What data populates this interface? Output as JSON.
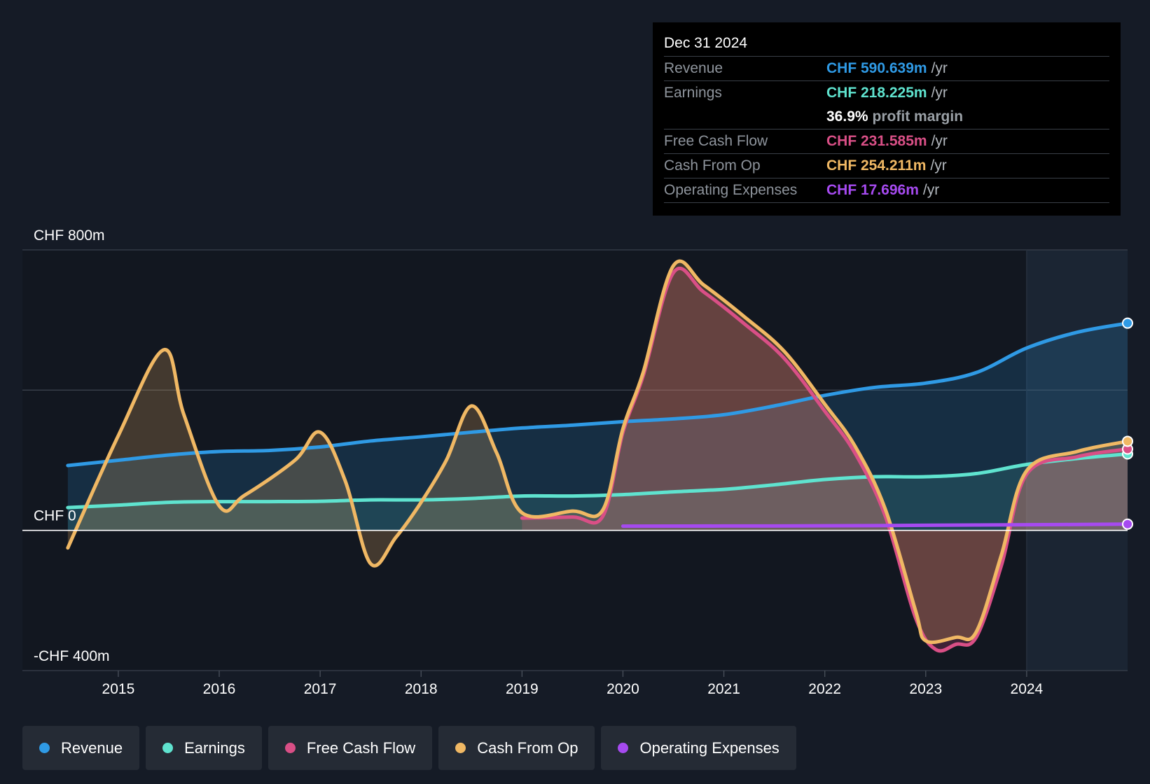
{
  "tooltip": {
    "date": "Dec 31 2024",
    "rows": [
      {
        "label": "Revenue",
        "value": "CHF 590.639m",
        "unit": "/yr",
        "color": "#2f9ae5"
      },
      {
        "label": "Earnings",
        "value": "CHF 218.225m",
        "unit": "/yr",
        "color": "#5fe3cf"
      },
      {
        "label": "",
        "value": "36.9%",
        "unit": "profit margin",
        "color": "#ffffff"
      },
      {
        "label": "Free Cash Flow",
        "value": "CHF 231.585m",
        "unit": "/yr",
        "color": "#d94f86"
      },
      {
        "label": "Cash From Op",
        "value": "CHF 254.211m",
        "unit": "/yr",
        "color": "#f0b864"
      },
      {
        "label": "Operating Expenses",
        "value": "CHF 17.696m",
        "unit": "/yr",
        "color": "#a64af0"
      }
    ]
  },
  "legend": [
    {
      "label": "Revenue",
      "color": "#2f9ae5"
    },
    {
      "label": "Earnings",
      "color": "#5fe3cf"
    },
    {
      "label": "Free Cash Flow",
      "color": "#d94f86"
    },
    {
      "label": "Cash From Op",
      "color": "#f0b864"
    },
    {
      "label": "Operating Expenses",
      "color": "#a64af0"
    }
  ],
  "chart_data": {
    "type": "area",
    "title": "",
    "xlabel": "",
    "ylabel": "",
    "ylim": [
      -400,
      800
    ],
    "y_tick_labels": [
      {
        "value": 800,
        "label": "CHF 800m"
      },
      {
        "value": 0,
        "label": "CHF 0"
      },
      {
        "value": -400,
        "label": "-CHF 400m"
      }
    ],
    "xlim": [
      2014.05,
      2025.0
    ],
    "x_ticks": [
      2015,
      2016,
      2017,
      2018,
      2019,
      2020,
      2021,
      2022,
      2023,
      2024
    ],
    "x_tick_labels": [
      "2015",
      "2016",
      "2017",
      "2018",
      "2019",
      "2020",
      "2021",
      "2022",
      "2023",
      "2024"
    ],
    "forecast_start": 2024.0,
    "series": [
      {
        "name": "Revenue",
        "color": "#2f9ae5",
        "x": [
          2014.5,
          2015.0,
          2015.5,
          2016.0,
          2016.5,
          2017.0,
          2017.5,
          2018.0,
          2018.5,
          2019.0,
          2019.5,
          2020.0,
          2020.5,
          2021.0,
          2021.5,
          2022.0,
          2022.5,
          2023.0,
          2023.5,
          2024.0,
          2024.5,
          2025.0
        ],
        "values": [
          185,
          200,
          215,
          225,
          228,
          238,
          255,
          267,
          280,
          292,
          300,
          310,
          318,
          330,
          355,
          385,
          408,
          420,
          450,
          520,
          565,
          591
        ]
      },
      {
        "name": "Earnings",
        "color": "#5fe3cf",
        "x": [
          2014.5,
          2015.0,
          2015.5,
          2016.0,
          2016.5,
          2017.0,
          2017.5,
          2018.0,
          2018.5,
          2019.0,
          2019.5,
          2020.0,
          2020.5,
          2021.0,
          2021.5,
          2022.0,
          2022.5,
          2023.0,
          2023.5,
          2024.0,
          2024.5,
          2025.0
        ],
        "values": [
          65,
          72,
          80,
          82,
          82,
          83,
          87,
          87,
          91,
          98,
          98,
          102,
          110,
          117,
          130,
          145,
          153,
          153,
          162,
          188,
          205,
          218
        ]
      },
      {
        "name": "Free Cash Flow",
        "color": "#d94f86",
        "x": [
          2019.0,
          2019.5,
          2019.8,
          2020.0,
          2020.2,
          2020.5,
          2020.8,
          2021.2,
          2021.6,
          2022.0,
          2022.3,
          2022.6,
          2022.9,
          2023.1,
          2023.3,
          2023.5,
          2023.75,
          2024.0,
          2024.5,
          2025.0
        ],
        "values": [
          35,
          38,
          40,
          280,
          440,
          735,
          680,
          590,
          490,
          340,
          220,
          40,
          -250,
          -340,
          -325,
          -305,
          -100,
          160,
          210,
          232
        ]
      },
      {
        "name": "Cash From Op",
        "color": "#f0b864",
        "x": [
          2014.5,
          2015.0,
          2015.45,
          2015.65,
          2016.0,
          2016.25,
          2016.75,
          2017.0,
          2017.25,
          2017.5,
          2017.75,
          2018.0,
          2018.25,
          2018.5,
          2018.75,
          2019.0,
          2019.5,
          2019.8,
          2020.0,
          2020.2,
          2020.5,
          2020.8,
          2021.2,
          2021.6,
          2022.0,
          2022.3,
          2022.6,
          2022.9,
          2023.0,
          2023.3,
          2023.5,
          2023.75,
          2024.0,
          2024.5,
          2025.0
        ],
        "values": [
          -50,
          270,
          515,
          330,
          70,
          100,
          200,
          280,
          140,
          -95,
          -20,
          80,
          200,
          355,
          220,
          50,
          55,
          58,
          290,
          450,
          755,
          700,
          610,
          510,
          360,
          240,
          60,
          -230,
          -315,
          -305,
          -290,
          -70,
          170,
          225,
          254
        ]
      },
      {
        "name": "Operating Expenses",
        "color": "#a64af0",
        "x": [
          2020.0,
          2021.0,
          2022.0,
          2023.0,
          2024.0,
          2025.0
        ],
        "values": [
          12,
          12.5,
          13,
          14.5,
          16,
          17.7
        ]
      }
    ]
  }
}
